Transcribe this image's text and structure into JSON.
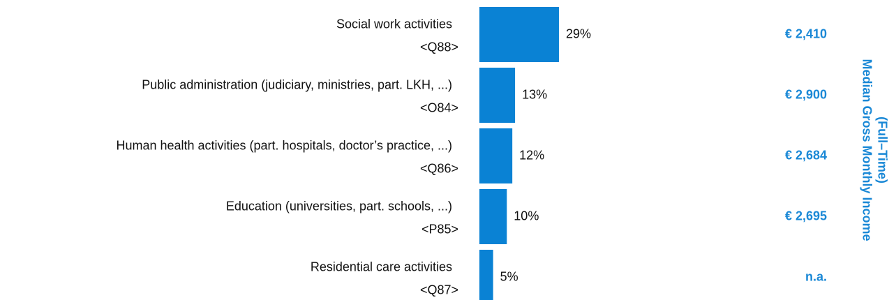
{
  "chart_data": {
    "type": "bar",
    "orientation": "horizontal",
    "categories": [
      "Social work activities",
      "Public administration (judiciary, ministries, part. LKH, ...)",
      "Human health activities (part. hospitals, doctor’s practice, ...)",
      "Education (universities, part. schools, ...)",
      "Residential care activities"
    ],
    "codes": [
      "<Q88>",
      "<O84>",
      "<Q86>",
      "<P85>",
      "<Q87>"
    ],
    "values": [
      29,
      13,
      12,
      10,
      5
    ],
    "value_labels": [
      "29%",
      "13%",
      "12%",
      "10%",
      "5%"
    ],
    "color": "#0a82d4",
    "xlim": [
      0,
      100
    ],
    "income_title": [
      "Median Gross Monthly Income",
      "(Full–Time)"
    ],
    "income_labels": [
      "€ 2,410",
      "€ 2,900",
      "€ 2,684",
      "€ 2,695",
      "n.a."
    ]
  }
}
